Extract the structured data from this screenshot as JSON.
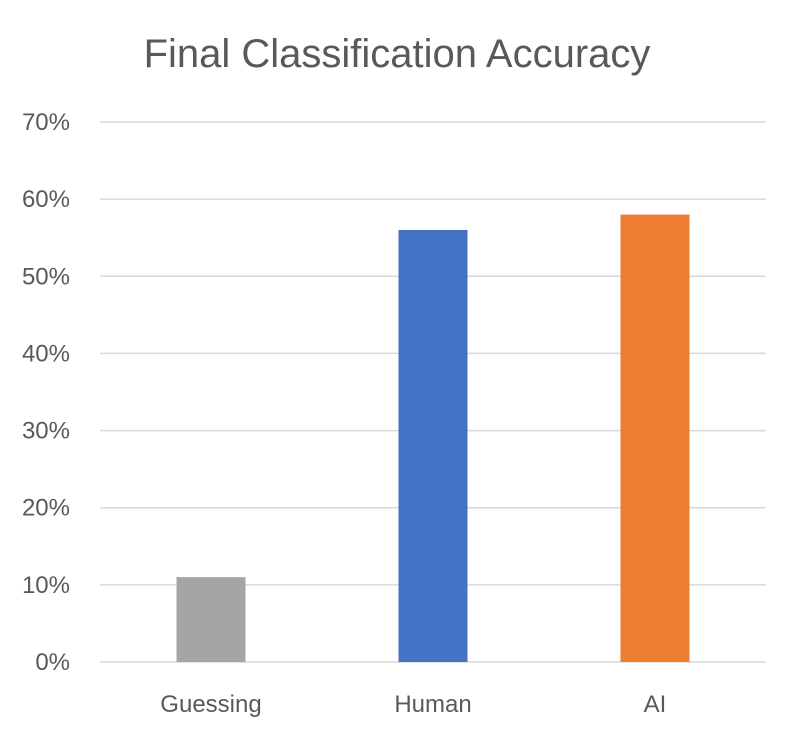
{
  "chart_data": {
    "type": "bar",
    "title": "Final Classification Accuracy",
    "xlabel": "",
    "ylabel": "",
    "categories": [
      "Guessing",
      "Human",
      "AI"
    ],
    "values": [
      0.11,
      0.56,
      0.58
    ],
    "colors": [
      "#a5a5a5",
      "#4472c4",
      "#ed7d31"
    ],
    "ylim": [
      0,
      0.7
    ],
    "yticks": [
      0,
      0.1,
      0.2,
      0.3,
      0.4,
      0.5,
      0.6,
      0.7
    ],
    "ytick_labels": [
      "0%",
      "10%",
      "20%",
      "30%",
      "40%",
      "50%",
      "60%",
      "70%"
    ],
    "grid": true,
    "legend": "none"
  }
}
